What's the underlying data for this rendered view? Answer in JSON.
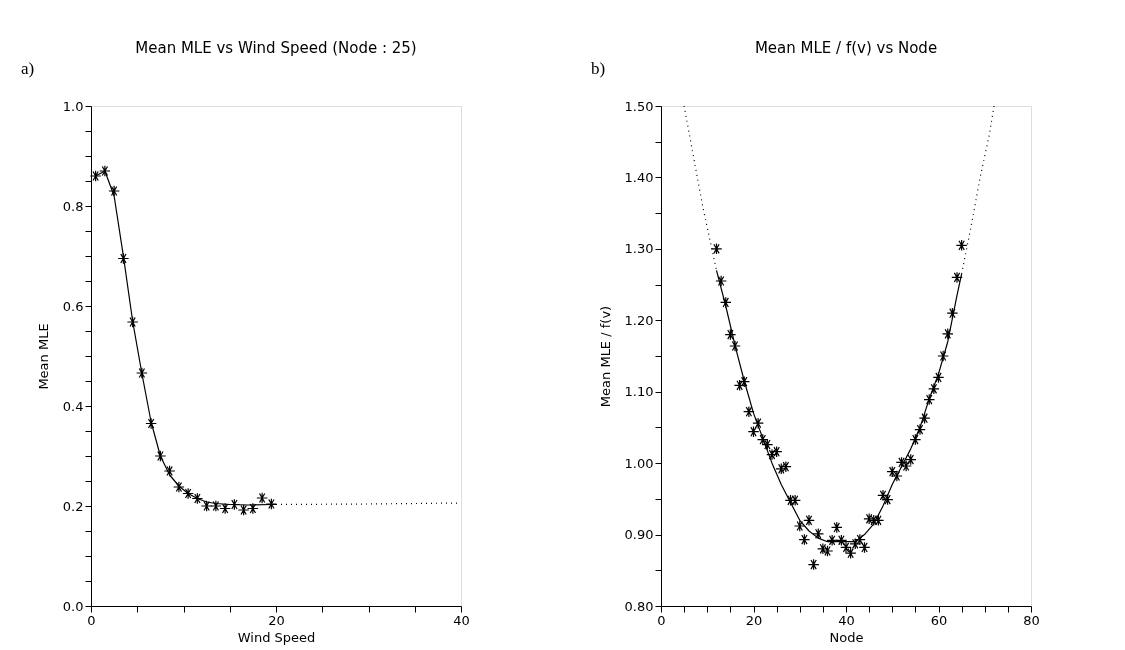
{
  "chart_data": [
    {
      "type": "scatter",
      "title": "Mean MLE vs Wind Speed (Node : 25)",
      "xlabel": "Wind Speed",
      "ylabel": "Mean MLE",
      "annotations": [
        "a)"
      ],
      "xlim": [
        0,
        40
      ],
      "xticks": [
        0,
        {
          "value": 5,
          "label": null
        },
        {
          "value": 10,
          "label": null
        },
        {
          "value": 15,
          "label": null
        },
        20,
        {
          "value": 25,
          "label": null
        },
        {
          "value": 30,
          "label": null
        },
        {
          "value": 35,
          "label": null
        },
        40
      ],
      "ylim": [
        0,
        1
      ],
      "yticks": [
        {
          "value": 0,
          "label": "0.0"
        },
        {
          "value": 0.05,
          "label": null
        },
        {
          "value": 0.1,
          "label": null
        },
        {
          "value": 0.15,
          "label": null
        },
        {
          "value": 0.2,
          "label": "0.2"
        },
        {
          "value": 0.25,
          "label": null
        },
        {
          "value": 0.3,
          "label": null
        },
        {
          "value": 0.35,
          "label": null
        },
        {
          "value": 0.4,
          "label": "0.4"
        },
        {
          "value": 0.45,
          "label": null
        },
        {
          "value": 0.5,
          "label": null
        },
        {
          "value": 0.55,
          "label": null
        },
        {
          "value": 0.6,
          "label": "0.6"
        },
        {
          "value": 0.65,
          "label": null
        },
        {
          "value": 0.7,
          "label": null
        },
        {
          "value": 0.75,
          "label": null
        },
        {
          "value": 0.8,
          "label": "0.8"
        },
        {
          "value": 0.85,
          "label": null
        },
        {
          "value": 0.9,
          "label": null
        },
        {
          "value": 0.95,
          "label": null
        },
        {
          "value": 1.0,
          "label": "1.0"
        }
      ],
      "grid": false,
      "x": [
        0.5,
        1.5,
        2.5,
        3.5,
        4.5,
        5.5,
        6.5,
        7.5,
        8.5,
        9.5,
        10.5,
        11.5,
        12.5,
        13.5,
        14.5,
        15.5,
        16.5,
        17.5,
        18.5,
        19.5
      ],
      "series": [
        {
          "color": "#000000",
          "marker": "cross",
          "values": [
            0.86,
            0.87,
            0.83,
            0.695,
            0.568,
            0.466,
            0.365,
            0.3,
            0.27,
            0.238,
            0.225,
            0.215,
            0.2,
            0.2,
            0.195,
            0.203,
            0.192,
            0.195,
            0.216,
            0.204
          ]
        },
        {
          "type": "line",
          "color": "#000000",
          "line_style": "solid",
          "x": [
            0.5,
            1.5,
            2.5,
            3.5,
            4.5,
            5.5,
            6.5,
            7.5,
            8.5,
            9.5,
            10.5,
            11.5,
            12.5,
            13.5,
            15,
            17,
            19.5,
            20
          ],
          "values": [
            0.86,
            0.87,
            0.82,
            0.7,
            0.57,
            0.465,
            0.368,
            0.3,
            0.262,
            0.24,
            0.225,
            0.215,
            0.208,
            0.205,
            0.203,
            0.202,
            0.203,
            0.203
          ]
        },
        {
          "type": "line",
          "color": "#000000",
          "line_style": "dotted",
          "x": [
            20,
            30,
            40
          ],
          "values": [
            0.203,
            0.204,
            0.206
          ]
        }
      ]
    },
    {
      "type": "scatter",
      "title": "Mean MLE / f(v) vs Node",
      "xlabel": "Node",
      "ylabel": "Mean MLE / f(v)",
      "annotations": [
        "b)"
      ],
      "xlim": [
        0,
        80
      ],
      "xticks": [
        0,
        {
          "value": 5,
          "label": null
        },
        {
          "value": 10,
          "label": null
        },
        {
          "value": 15,
          "label": null
        },
        20,
        {
          "value": 25,
          "label": null
        },
        {
          "value": 30,
          "label": null
        },
        {
          "value": 35,
          "label": null
        },
        40,
        {
          "value": 45,
          "label": null
        },
        {
          "value": 50,
          "label": null
        },
        {
          "value": 55,
          "label": null
        },
        60,
        {
          "value": 65,
          "label": null
        },
        {
          "value": 70,
          "label": null
        },
        {
          "value": 75,
          "label": null
        },
        80
      ],
      "ylim": [
        0.8,
        1.5
      ],
      "yticks": [
        {
          "value": 0.8,
          "label": "0.80"
        },
        {
          "value": 0.85,
          "label": null
        },
        {
          "value": 0.9,
          "label": "0.90"
        },
        {
          "value": 0.95,
          "label": null
        },
        {
          "value": 1.0,
          "label": "1.00"
        },
        {
          "value": 1.05,
          "label": null
        },
        {
          "value": 1.1,
          "label": "1.10"
        },
        {
          "value": 1.15,
          "label": null
        },
        {
          "value": 1.2,
          "label": "1.20"
        },
        {
          "value": 1.25,
          "label": null
        },
        {
          "value": 1.3,
          "label": "1.30"
        },
        {
          "value": 1.35,
          "label": null
        },
        {
          "value": 1.4,
          "label": "1.40"
        },
        {
          "value": 1.45,
          "label": null
        },
        {
          "value": 1.5,
          "label": "1.50"
        }
      ],
      "grid": false,
      "x": [
        12,
        13,
        14,
        15,
        16,
        17,
        18,
        19,
        20,
        21,
        22,
        23,
        24,
        25,
        26,
        27,
        28,
        29,
        30,
        31,
        32,
        33,
        34,
        35,
        36,
        37,
        38,
        39,
        40,
        41,
        42,
        43,
        44,
        45,
        46,
        47,
        48,
        49,
        50,
        51,
        52,
        53,
        54,
        55,
        56,
        57,
        58,
        59,
        60,
        61,
        62,
        63,
        64,
        65
      ],
      "series": [
        {
          "color": "#000000",
          "marker": "cross",
          "values": [
            1.3,
            1.255,
            1.225,
            1.18,
            1.164,
            1.109,
            1.114,
            1.072,
            1.044,
            1.056,
            1.033,
            1.026,
            1.012,
            1.016,
            0.992,
            0.995,
            0.948,
            0.948,
            0.912,
            0.893,
            0.92,
            0.858,
            0.901,
            0.88,
            0.877,
            0.892,
            0.91,
            0.892,
            0.882,
            0.874,
            0.887,
            0.893,
            0.882,
            0.922,
            0.92,
            0.92,
            0.955,
            0.949,
            0.988,
            0.982,
            1.001,
            0.996,
            1.005,
            1.033,
            1.047,
            1.063,
            1.089,
            1.104,
            1.12,
            1.15,
            1.181,
            1.21,
            1.26,
            1.305
          ]
        },
        {
          "type": "line",
          "color": "#000000",
          "line_style": "solid",
          "x": [
            12,
            14,
            16,
            18,
            20,
            22,
            24,
            26,
            28,
            30,
            32,
            34,
            36,
            38,
            40,
            42,
            44,
            46,
            48,
            50,
            52,
            54,
            56,
            58,
            60,
            62,
            64,
            65
          ],
          "values": [
            1.27,
            1.22,
            1.165,
            1.115,
            1.07,
            1.035,
            1.0,
            0.97,
            0.945,
            0.92,
            0.905,
            0.895,
            0.89,
            0.89,
            0.89,
            0.89,
            0.9,
            0.915,
            0.94,
            0.97,
            0.995,
            1.02,
            1.05,
            1.09,
            1.125,
            1.17,
            1.235,
            1.265
          ]
        },
        {
          "type": "line",
          "color": "#000000",
          "line_style": "dotted",
          "x": [
            5,
            7,
            9,
            11,
            12
          ],
          "values": [
            1.5,
            1.43,
            1.36,
            1.3,
            1.27
          ]
        },
        {
          "type": "line",
          "color": "#000000",
          "line_style": "dotted",
          "x": [
            65,
            67,
            69,
            71,
            72
          ],
          "values": [
            1.265,
            1.33,
            1.4,
            1.46,
            1.5
          ]
        }
      ]
    }
  ]
}
